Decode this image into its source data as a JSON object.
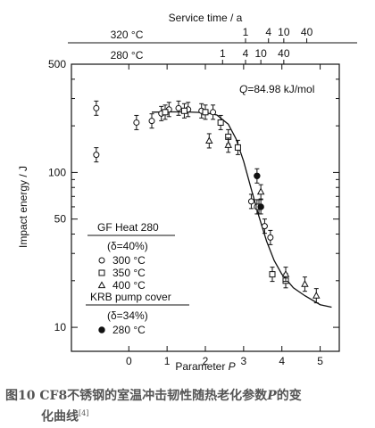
{
  "chart_data": {
    "type": "scatter",
    "top_axis_title": "Service time / a",
    "service_scales": [
      {
        "label": "320 °C",
        "ticks": [
          {
            "label": "1",
            "p": 3.05
          },
          {
            "label": "4",
            "p": 3.65
          },
          {
            "label": "10",
            "p": 4.05
          },
          {
            "label": "40",
            "p": 4.65
          }
        ]
      },
      {
        "label": "280 °C",
        "ticks": [
          {
            "label": "1",
            "p": 2.45
          },
          {
            "label": "4",
            "p": 3.05
          },
          {
            "label": "10",
            "p": 3.45
          },
          {
            "label": "40",
            "p": 4.05
          }
        ]
      }
    ],
    "xlabel": "Parameter P",
    "xlabel_text": "Parameter ",
    "xlabel_var": "P",
    "ylabel": "Impact energy / J",
    "xlim": [
      -1.5,
      5.5
    ],
    "ylim": [
      7,
      500
    ],
    "yscale": "log",
    "xticks": [
      "0",
      "1",
      "2",
      "3",
      "4",
      "5"
    ],
    "yticks": [
      "10",
      "50",
      "100",
      "500"
    ],
    "annotation": "Q=84.98 kJ/mol",
    "annotation_q": "Q",
    "annotation_rest": "=84.98 kJ/mol",
    "legend": {
      "group1_title": "GF Heat 280",
      "group1_delta": "(δ=40%)",
      "group1_items": [
        "300 °C",
        "350 °C",
        "400 °C"
      ],
      "group2_title": "KRB pump cover",
      "group2_delta": "(δ=34%)",
      "group2_items": [
        "280 °C"
      ]
    },
    "series": [
      {
        "name": "300 °C",
        "marker": "circle",
        "points": [
          {
            "x": -0.85,
            "y": 260
          },
          {
            "x": -0.85,
            "y": 130
          },
          {
            "x": 0.2,
            "y": 210
          },
          {
            "x": 0.6,
            "y": 215
          },
          {
            "x": 0.85,
            "y": 240
          },
          {
            "x": 1.05,
            "y": 255
          },
          {
            "x": 1.3,
            "y": 260
          },
          {
            "x": 1.55,
            "y": 255
          },
          {
            "x": 1.9,
            "y": 250
          },
          {
            "x": 2.2,
            "y": 245
          },
          {
            "x": 3.2,
            "y": 65
          },
          {
            "x": 3.35,
            "y": 60
          },
          {
            "x": 3.55,
            "y": 45
          },
          {
            "x": 3.7,
            "y": 38
          }
        ]
      },
      {
        "name": "350 °C",
        "marker": "square",
        "points": [
          {
            "x": 0.95,
            "y": 245
          },
          {
            "x": 1.45,
            "y": 250
          },
          {
            "x": 2.0,
            "y": 245
          },
          {
            "x": 2.4,
            "y": 210
          },
          {
            "x": 2.6,
            "y": 170
          },
          {
            "x": 2.85,
            "y": 145
          },
          {
            "x": 3.4,
            "y": 60
          },
          {
            "x": 3.75,
            "y": 22
          },
          {
            "x": 4.1,
            "y": 20
          }
        ]
      },
      {
        "name": "400 °C",
        "marker": "triangle",
        "points": [
          {
            "x": 2.1,
            "y": 160
          },
          {
            "x": 2.6,
            "y": 150
          },
          {
            "x": 3.45,
            "y": 75
          },
          {
            "x": 4.1,
            "y": 22
          },
          {
            "x": 4.6,
            "y": 19
          },
          {
            "x": 4.9,
            "y": 16
          }
        ]
      },
      {
        "name": "280 °C",
        "marker": "filled-circle",
        "points": [
          {
            "x": 3.35,
            "y": 95
          },
          {
            "x": 3.45,
            "y": 60
          }
        ]
      }
    ],
    "fit_curve": [
      {
        "x": 0.6,
        "y": 245
      },
      {
        "x": 1.0,
        "y": 246
      },
      {
        "x": 1.5,
        "y": 246
      },
      {
        "x": 2.0,
        "y": 243
      },
      {
        "x": 2.3,
        "y": 235
      },
      {
        "x": 2.6,
        "y": 205
      },
      {
        "x": 2.8,
        "y": 165
      },
      {
        "x": 3.0,
        "y": 118
      },
      {
        "x": 3.2,
        "y": 78
      },
      {
        "x": 3.4,
        "y": 52
      },
      {
        "x": 3.6,
        "y": 36
      },
      {
        "x": 3.8,
        "y": 27
      },
      {
        "x": 4.0,
        "y": 22
      },
      {
        "x": 4.3,
        "y": 18
      },
      {
        "x": 4.6,
        "y": 16
      },
      {
        "x": 5.0,
        "y": 14
      },
      {
        "x": 5.3,
        "y": 13.5
      }
    ]
  },
  "caption": {
    "label": "图10",
    "text": "CF8不锈钢的室温冲击韧性随热老化参数",
    "var": "P",
    "text_end": "的变",
    "cont": "化曲线",
    "ref": "[4]"
  }
}
